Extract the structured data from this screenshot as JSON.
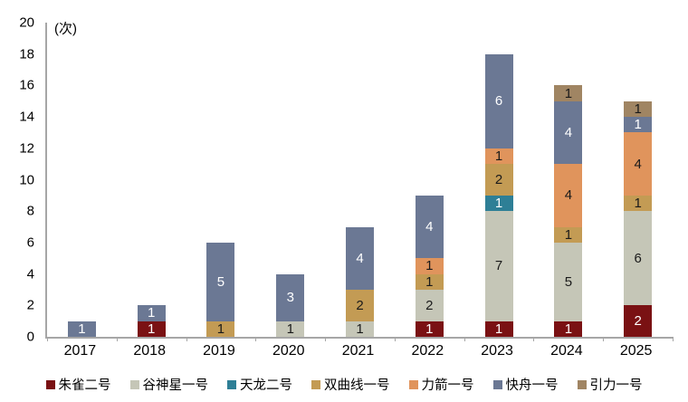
{
  "chart_data": {
    "type": "bar",
    "stacked": true,
    "unit_label": "(次)",
    "categories": [
      "2017",
      "2018",
      "2019",
      "2020",
      "2021",
      "2022",
      "2023",
      "2024",
      "2025"
    ],
    "series": [
      {
        "name": "朱雀二号",
        "color": "#7a1113",
        "label_color": "#ffffff",
        "values": [
          0,
          1,
          0,
          0,
          0,
          1,
          1,
          1,
          2
        ]
      },
      {
        "name": "谷神星一号",
        "color": "#c5c6b7",
        "label_color": "#1a1a1a",
        "values": [
          0,
          0,
          0,
          1,
          1,
          2,
          7,
          5,
          6
        ]
      },
      {
        "name": "天龙二号",
        "color": "#2e7f96",
        "label_color": "#ffffff",
        "values": [
          0,
          0,
          0,
          0,
          0,
          0,
          1,
          0,
          0
        ]
      },
      {
        "name": "双曲线一号",
        "color": "#c39b54",
        "label_color": "#1a1a1a",
        "values": [
          0,
          0,
          1,
          0,
          2,
          1,
          2,
          1,
          1
        ]
      },
      {
        "name": "力箭一号",
        "color": "#e0945c",
        "label_color": "#1a1a1a",
        "values": [
          0,
          0,
          0,
          0,
          0,
          1,
          1,
          4,
          4
        ]
      },
      {
        "name": "快舟一号",
        "color": "#6b7894",
        "label_color": "#ffffff",
        "values": [
          1,
          1,
          5,
          3,
          4,
          4,
          6,
          4,
          1
        ]
      },
      {
        "name": "引力一号",
        "color": "#a08563",
        "label_color": "#1a1a1a",
        "values": [
          0,
          0,
          0,
          0,
          0,
          0,
          0,
          1,
          1
        ]
      }
    ],
    "totals": [
      1,
      2,
      6,
      4,
      7,
      9,
      18,
      16,
      15
    ],
    "ylim": [
      0,
      20
    ],
    "ytick_step": 2,
    "yticks": [
      0,
      2,
      4,
      6,
      8,
      10,
      12,
      14,
      16,
      18,
      20
    ],
    "grid": false,
    "legend_position": "bottom",
    "axis_color": "#a6a6a6"
  }
}
